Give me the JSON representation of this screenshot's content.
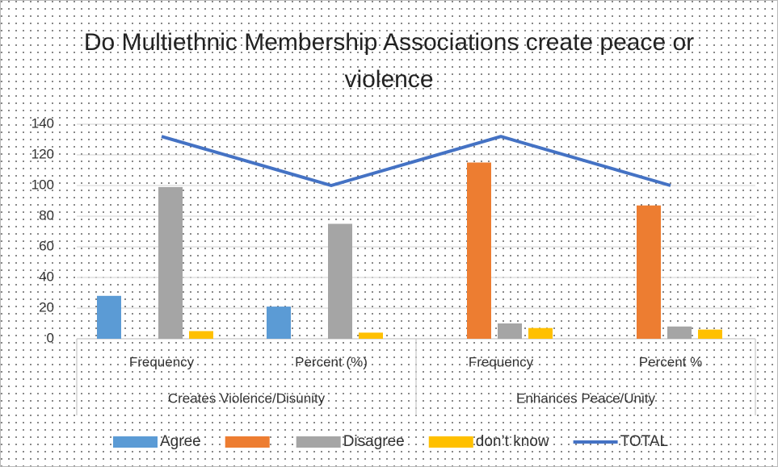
{
  "chart_data": {
    "type": "bar",
    "title": "Do Multiethnic Membership Associations create peace or violence",
    "categories": [
      "Frequency",
      "Percent (%)",
      "Frequency",
      "Percent %"
    ],
    "group_labels": [
      "Creates Violence/Disunity",
      "Enhances Peace/Unity"
    ],
    "series": [
      {
        "name": "Agree",
        "color": "#5b9bd5",
        "values": [
          28,
          21,
          null,
          null
        ]
      },
      {
        "color": "#ed7d31",
        "values": [
          null,
          null,
          115,
          87
        ]
      },
      {
        "name": "Disagree",
        "color": "#a5a5a5",
        "values": [
          99,
          75,
          10,
          8
        ]
      },
      {
        "name": "don’t know",
        "color": "#ffc000",
        "values": [
          5,
          4,
          7,
          6
        ]
      },
      {
        "name": "TOTAL",
        "type": "line",
        "color": "#4472c4",
        "values": [
          132,
          100,
          132,
          100
        ]
      }
    ],
    "ylim": [
      0,
      140
    ],
    "yticks": [
      0,
      20,
      40,
      60,
      80,
      100,
      120,
      140
    ],
    "grid": true,
    "legend": "bottom"
  }
}
